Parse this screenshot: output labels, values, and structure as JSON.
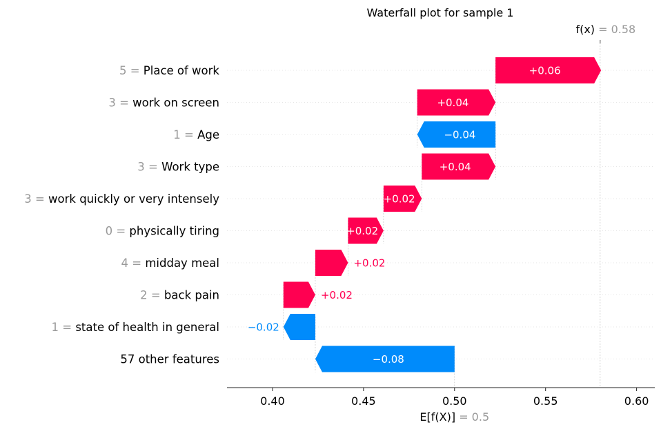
{
  "chart_data": {
    "type": "waterfall",
    "title": "Waterfall plot for sample 1",
    "base_value": 0.5,
    "base_label_main": "E[f(X)]",
    "base_label_value": "= 0.5",
    "output_value": 0.58,
    "output_label_main": "f(x)",
    "output_label_value": "= 0.58",
    "xlim": [
      0.375,
      0.61
    ],
    "xticks": [
      0.4,
      0.45,
      0.5,
      0.55,
      0.6
    ],
    "xtick_labels": [
      "0.40",
      "0.45",
      "0.50",
      "0.55",
      "0.60"
    ],
    "colors": {
      "positive": "#ff0051",
      "negative": "#008bfb",
      "value_gray": "#999999",
      "text": "#000000"
    },
    "features": [
      {
        "value": "5 =",
        "name": "Place of work",
        "start": 0.5225,
        "end": 0.5805,
        "label": "+0.06"
      },
      {
        "value": "3 =",
        "name": "work on screen",
        "start": 0.4795,
        "end": 0.5225,
        "label": "+0.04"
      },
      {
        "value": "1 =",
        "name": "Age",
        "start": 0.5225,
        "end": 0.4795,
        "label": "−0.04"
      },
      {
        "value": "3 =",
        "name": "Work type",
        "start": 0.482,
        "end": 0.5225,
        "label": "+0.04"
      },
      {
        "value": "3 =",
        "name": "work quickly or very intensely",
        "start": 0.461,
        "end": 0.482,
        "label": "+0.02"
      },
      {
        "value": "0 =",
        "name": "physically tiring",
        "start": 0.4415,
        "end": 0.461,
        "label": "+0.02"
      },
      {
        "value": "4 =",
        "name": "midday meal",
        "start": 0.4235,
        "end": 0.4415,
        "label": "+0.02"
      },
      {
        "value": "2 =",
        "name": "back pain",
        "start": 0.406,
        "end": 0.4235,
        "label": "+0.02"
      },
      {
        "value": "1 =",
        "name": "state of health in general",
        "start": 0.4235,
        "end": 0.406,
        "label": "−0.02"
      },
      {
        "value": "",
        "name": "57 other features",
        "start": 0.5,
        "end": 0.4235,
        "label": "−0.08"
      }
    ]
  }
}
